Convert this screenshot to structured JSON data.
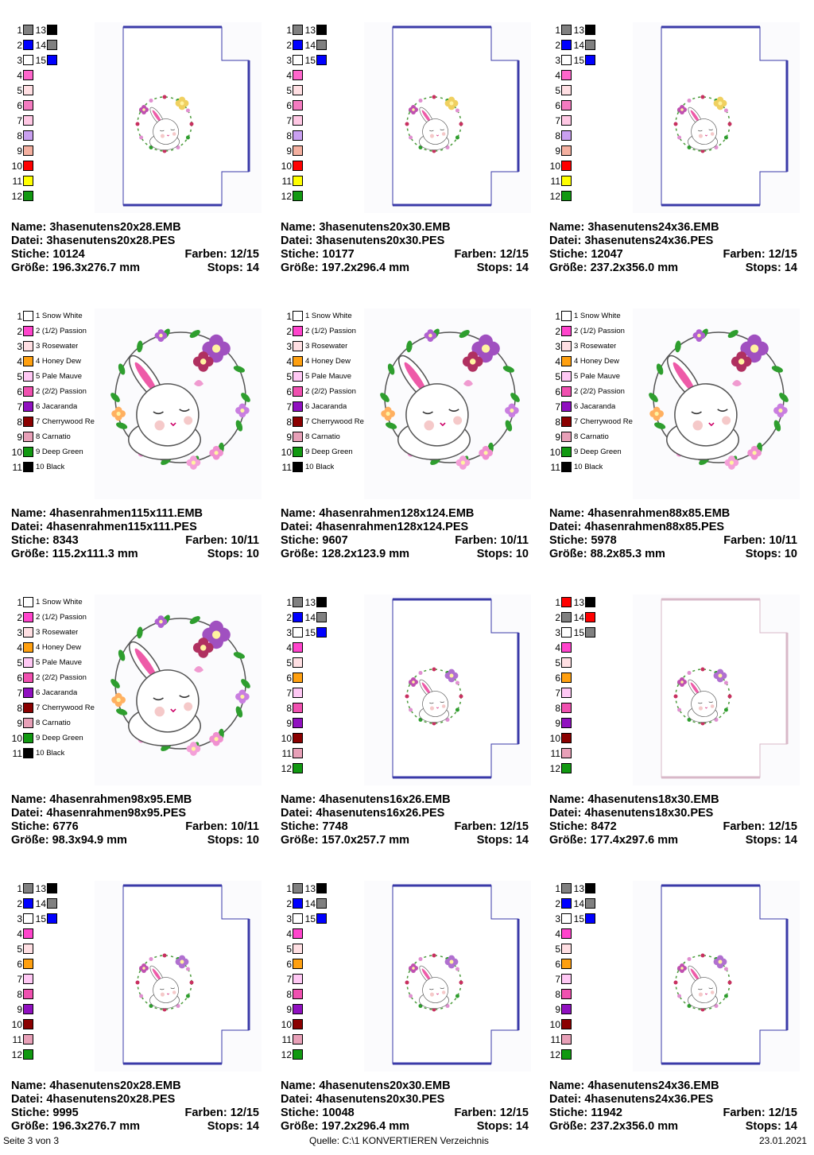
{
  "labels": {
    "name": "Name:",
    "datei": "Datei:",
    "stiche": "Stiche:",
    "farben": "Farben:",
    "groesse": "Größe:",
    "stops": "Stops:"
  },
  "footer": {
    "page": "Seite 3 von 3",
    "source": "Quelle: C:\\1 KONVERTIEREN Verzeichnis",
    "date": "23.01.2021"
  },
  "palettes": {
    "frameA": [
      {
        "n": "1",
        "c": "#808080"
      },
      {
        "n": "2",
        "c": "#0000ff"
      },
      {
        "n": "3",
        "c": "#ffffff"
      },
      {
        "n": "4",
        "c": "#ff66cc"
      },
      {
        "n": "5",
        "c": "#ffdfe3"
      },
      {
        "n": "6",
        "c": "#f47bc0"
      },
      {
        "n": "7",
        "c": "#ffc8e4"
      },
      {
        "n": "8",
        "c": "#c9a0f0"
      },
      {
        "n": "9",
        "c": "#f4b0a0"
      },
      {
        "n": "10",
        "c": "#ff0000"
      },
      {
        "n": "11",
        "c": "#ffff00"
      },
      {
        "n": "12",
        "c": "#119911"
      },
      {
        "n": "13",
        "c": "#000000"
      },
      {
        "n": "14",
        "c": "#808080"
      },
      {
        "n": "15",
        "c": "#0000ff"
      }
    ],
    "frameB": [
      {
        "n": "1",
        "c": "#808080"
      },
      {
        "n": "2",
        "c": "#0000ff"
      },
      {
        "n": "3",
        "c": "#ffffff"
      },
      {
        "n": "4",
        "c": "#ff44cc"
      },
      {
        "n": "5",
        "c": "#ffdfe3"
      },
      {
        "n": "6",
        "c": "#ffa010"
      },
      {
        "n": "7",
        "c": "#ffc8f4"
      },
      {
        "n": "8",
        "c": "#f050b0"
      },
      {
        "n": "9",
        "c": "#9010c0"
      },
      {
        "n": "10",
        "c": "#8b0000"
      },
      {
        "n": "11",
        "c": "#e8a0b8"
      },
      {
        "n": "12",
        "c": "#119911"
      },
      {
        "n": "13",
        "c": "#000000"
      },
      {
        "n": "14",
        "c": "#808080"
      },
      {
        "n": "15",
        "c": "#0000ff"
      }
    ],
    "frameC": [
      {
        "n": "1",
        "c": "#ff0000"
      },
      {
        "n": "2",
        "c": "#808080"
      },
      {
        "n": "3",
        "c": "#ffffff"
      },
      {
        "n": "4",
        "c": "#ff44cc"
      },
      {
        "n": "5",
        "c": "#ffdfe3"
      },
      {
        "n": "6",
        "c": "#ffa010"
      },
      {
        "n": "7",
        "c": "#ffc8f4"
      },
      {
        "n": "8",
        "c": "#f050b0"
      },
      {
        "n": "9",
        "c": "#9010c0"
      },
      {
        "n": "10",
        "c": "#8b0000"
      },
      {
        "n": "11",
        "c": "#e8a0b8"
      },
      {
        "n": "12",
        "c": "#119911"
      },
      {
        "n": "13",
        "c": "#000000"
      },
      {
        "n": "14",
        "c": "#ff0000"
      },
      {
        "n": "15",
        "c": "#808080"
      }
    ],
    "wreath": [
      {
        "n": "1",
        "c": "#ffffff",
        "t": "1 Snow White"
      },
      {
        "n": "2",
        "c": "#ff44cc",
        "t": "2 (1/2) Passion"
      },
      {
        "n": "3",
        "c": "#ffdfe3",
        "t": "3 Rosewater"
      },
      {
        "n": "4",
        "c": "#ffa010",
        "t": "4 Honey Dew"
      },
      {
        "n": "5",
        "c": "#ffc8f4",
        "t": "5 Pale Mauve"
      },
      {
        "n": "6",
        "c": "#f050b0",
        "t": "2 (2/2) Passion"
      },
      {
        "n": "7",
        "c": "#9010c0",
        "t": "6 Jacaranda"
      },
      {
        "n": "8",
        "c": "#8b0000",
        "t": "7 Cherrywood Re"
      },
      {
        "n": "9",
        "c": "#e8a0b8",
        "t": "8 Carnatio"
      },
      {
        "n": "10",
        "c": "#119911",
        "t": "9 Deep Green"
      },
      {
        "n": "11",
        "c": "#000000",
        "t": "10 Black"
      }
    ]
  },
  "cards": [
    {
      "kind": "frame",
      "pal": "frameA",
      "motif": "3",
      "name": "3hasenutens20x28.EMB",
      "datei": "3hasenutens20x28.PES",
      "stiche": "10124",
      "farben": "12/15",
      "groesse": "196.3x276.7 mm",
      "stops": "14"
    },
    {
      "kind": "frame",
      "pal": "frameA",
      "motif": "3",
      "name": "3hasenutens20x30.EMB",
      "datei": "3hasenutens20x30.PES",
      "stiche": "10177",
      "farben": "12/15",
      "groesse": "197.2x296.4 mm",
      "stops": "14"
    },
    {
      "kind": "frame",
      "pal": "frameA",
      "motif": "3",
      "name": "3hasenutens24x36.EMB",
      "datei": "3hasenutens24x36.PES",
      "stiche": "12047",
      "farben": "12/15",
      "groesse": "237.2x356.0 mm",
      "stops": "14"
    },
    {
      "kind": "wreath",
      "pal": "wreath",
      "name": "4hasenrahmen115x111.EMB",
      "datei": "4hasenrahmen115x111.PES",
      "stiche": "8343",
      "farben": "10/11",
      "groesse": "115.2x111.3 mm",
      "stops": "10"
    },
    {
      "kind": "wreath",
      "pal": "wreath",
      "name": "4hasenrahmen128x124.EMB",
      "datei": "4hasenrahmen128x124.PES",
      "stiche": "9607",
      "farben": "10/11",
      "groesse": "128.2x123.9 mm",
      "stops": "10"
    },
    {
      "kind": "wreath",
      "pal": "wreath",
      "name": "4hasenrahmen88x85.EMB",
      "datei": "4hasenrahmen88x85.PES",
      "stiche": "5978",
      "farben": "10/11",
      "groesse": "88.2x85.3 mm",
      "stops": "10"
    },
    {
      "kind": "wreath",
      "pal": "wreath",
      "name": "4hasenrahmen98x95.EMB",
      "datei": "4hasenrahmen98x95.PES",
      "stiche": "6776",
      "farben": "10/11",
      "groesse": "98.3x94.9 mm",
      "stops": "10"
    },
    {
      "kind": "frame",
      "pal": "frameB",
      "motif": "4",
      "name": "4hasenutens16x26.EMB",
      "datei": "4hasenutens16x26.PES",
      "stiche": "7748",
      "farben": "12/15",
      "groesse": "157.0x257.7 mm",
      "stops": "14"
    },
    {
      "kind": "frame",
      "pal": "frameC",
      "motif": "4",
      "name": "4hasenutens18x30.EMB",
      "datei": "4hasenutens18x30.PES",
      "stiche": "8472",
      "farben": "12/15",
      "groesse": "177.4x297.6 mm",
      "stops": "14"
    },
    {
      "kind": "frame",
      "pal": "frameB",
      "motif": "4",
      "name": "4hasenutens20x28.EMB",
      "datei": "4hasenutens20x28.PES",
      "stiche": "9995",
      "farben": "12/15",
      "groesse": "196.3x276.7 mm",
      "stops": "14"
    },
    {
      "kind": "frame",
      "pal": "frameB",
      "motif": "4",
      "name": "4hasenutens20x30.EMB",
      "datei": "4hasenutens20x30.PES",
      "stiche": "10048",
      "farben": "12/15",
      "groesse": "197.2x296.4 mm",
      "stops": "14"
    },
    {
      "kind": "frame",
      "pal": "frameB",
      "motif": "4",
      "name": "4hasenutens24x36.EMB",
      "datei": "4hasenutens24x36.PES",
      "stiche": "11942",
      "farben": "12/15",
      "groesse": "237.2x356.0 mm",
      "stops": "14"
    }
  ]
}
